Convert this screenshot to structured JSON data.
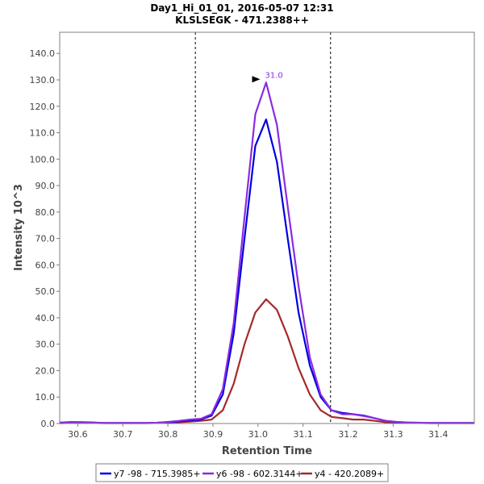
{
  "chart_data": {
    "type": "line",
    "title": "Day1_Hi_01_01, 2016-05-07 12:31",
    "subtitle": "KLSLSEGK - 471.2388++",
    "xlabel": "Retention Time",
    "ylabel": "Intensity 10^3",
    "xlim": [
      30.56,
      31.48
    ],
    "ylim": [
      0,
      148
    ],
    "x_ticks": [
      30.6,
      30.7,
      30.8,
      30.9,
      31.0,
      31.1,
      31.2,
      31.3,
      31.4
    ],
    "x_tick_labels": [
      "30.6",
      "30.7",
      "30.8",
      "30.9",
      "31.0",
      "31.1",
      "31.2",
      "31.3",
      "31.4"
    ],
    "y_ticks": [
      0,
      10,
      20,
      30,
      40,
      50,
      60,
      70,
      80,
      90,
      100,
      110,
      120,
      130,
      140
    ],
    "y_tick_labels": [
      "0.0",
      "10.0",
      "20.0",
      "30.0",
      "40.0",
      "50.0",
      "60.0",
      "70.0",
      "80.0",
      "90.0",
      "100.0",
      "110.0",
      "120.0",
      "130.0",
      "140.0"
    ],
    "vlines": [
      30.861,
      31.161
    ],
    "annotation": {
      "label": "31.0",
      "x": 31.012,
      "y": 129,
      "color": "#8A2BE2"
    },
    "x": [
      30.56,
      30.584,
      30.608,
      30.633,
      30.657,
      30.681,
      30.705,
      30.729,
      30.753,
      30.777,
      30.801,
      30.825,
      30.849,
      30.873,
      30.897,
      30.922,
      30.946,
      30.97,
      30.994,
      31.018,
      31.042,
      31.066,
      31.09,
      31.115,
      31.139,
      31.163,
      31.187,
      31.211,
      31.235,
      31.259,
      31.283,
      31.308,
      31.332,
      31.356,
      31.38,
      31.404,
      31.428,
      31.452,
      31.48
    ],
    "series": [
      {
        "name": "y7 -98 - 715.3985+",
        "color": "#0000E0",
        "values": [
          0.3,
          0.5,
          0.5,
          0.4,
          0.2,
          0.2,
          0.2,
          0.2,
          0.2,
          0.3,
          0.5,
          0.8,
          1.2,
          1.5,
          3,
          11,
          34,
          70,
          105,
          115,
          99,
          70,
          42,
          22,
          10,
          5,
          4,
          3.5,
          3,
          2,
          1,
          0.5,
          0.3,
          0.2,
          0.2,
          0.2,
          0.2,
          0.2,
          0.2
        ]
      },
      {
        "name": "y6 -98 - 602.3144+",
        "color": "#8A2BE2",
        "values": [
          0.2,
          0.3,
          0.4,
          0.3,
          0.2,
          0.2,
          0.2,
          0.2,
          0.2,
          0.3,
          0.6,
          1,
          1.5,
          1.8,
          3.5,
          13,
          38,
          78,
          117,
          129,
          113,
          82,
          52,
          25,
          11,
          5,
          3.5,
          3.5,
          2.8,
          2,
          1,
          0.6,
          0.4,
          0.3,
          0.2,
          0.2,
          0.2,
          0.2,
          0.2
        ]
      },
      {
        "name": "y4 - 420.2089+",
        "color": "#A52A2A",
        "values": [
          0.1,
          0.2,
          0.2,
          0.2,
          0.1,
          0.1,
          0.1,
          0.1,
          0.1,
          0.2,
          0.3,
          0.5,
          0.7,
          1,
          1.5,
          5,
          15,
          30,
          42,
          47,
          43,
          33,
          21,
          11,
          5,
          2.5,
          2,
          1.5,
          1.5,
          1,
          0.5,
          0.3,
          0.2,
          0.2,
          0.1,
          0.1,
          0.1,
          0.1,
          0.1
        ]
      }
    ]
  }
}
